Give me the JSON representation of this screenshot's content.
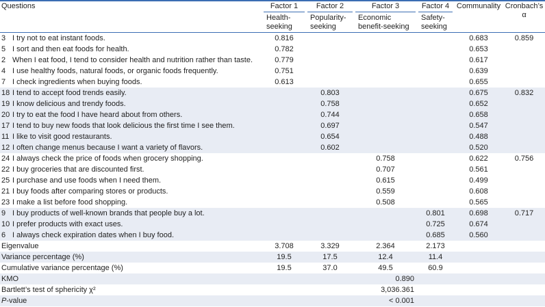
{
  "table": {
    "header": {
      "questions": "Questions",
      "factors": [
        {
          "name": "Factor 1",
          "sub": "Health-seeking"
        },
        {
          "name": "Factor 2",
          "sub": "Popularity-seeking"
        },
        {
          "name": "Factor 3",
          "sub": "Economic benefit-seeking"
        },
        {
          "name": "Factor 4",
          "sub": "Safety-seeking"
        }
      ],
      "communality": "Communality",
      "alpha": "Cronbach’s α"
    },
    "groups": [
      {
        "alpha": "0.859",
        "items": [
          {
            "num": "3",
            "text": "I try not to eat instant foods.",
            "loadings": [
              "0.816",
              null,
              null,
              null
            ],
            "communality": "0.683"
          },
          {
            "num": "5",
            "text": "I sort and then eat foods for health.",
            "loadings": [
              "0.782",
              null,
              null,
              null
            ],
            "communality": "0.653"
          },
          {
            "num": "2",
            "text": "When I eat food, I tend to consider health and nutrition rather than taste.",
            "loadings": [
              "0.779",
              null,
              null,
              null
            ],
            "communality": "0.617"
          },
          {
            "num": "4",
            "text": "I use healthy foods, natural foods, or organic foods frequently.",
            "loadings": [
              "0.751",
              null,
              null,
              null
            ],
            "communality": "0.639"
          },
          {
            "num": "7",
            "text": "I check ingredients when buying foods.",
            "loadings": [
              "0.613",
              null,
              null,
              null
            ],
            "communality": "0.655"
          }
        ]
      },
      {
        "alpha": "0.832",
        "items": [
          {
            "num": "18",
            "text": "I tend to accept food trends easily.",
            "loadings": [
              null,
              "0.803",
              null,
              null
            ],
            "communality": "0.675"
          },
          {
            "num": "19",
            "text": "I know delicious and trendy foods.",
            "loadings": [
              null,
              "0.758",
              null,
              null
            ],
            "communality": "0.652"
          },
          {
            "num": "20",
            "text": "I try to eat the food I have heard about from others.",
            "loadings": [
              null,
              "0.744",
              null,
              null
            ],
            "communality": "0.658"
          },
          {
            "num": "17",
            "text": "I tend to buy new foods that look delicious the first time I see them.",
            "loadings": [
              null,
              "0.697",
              null,
              null
            ],
            "communality": "0.547"
          },
          {
            "num": "11",
            "text": "I like to visit good restaurants.",
            "loadings": [
              null,
              "0.654",
              null,
              null
            ],
            "communality": "0.488"
          },
          {
            "num": "12",
            "text": "I often change menus because I want a variety of flavors.",
            "loadings": [
              null,
              "0.602",
              null,
              null
            ],
            "communality": "0.520"
          }
        ]
      },
      {
        "alpha": "0.756",
        "items": [
          {
            "num": "24",
            "text": "I always check the price of foods when grocery shopping.",
            "loadings": [
              null,
              null,
              "0.758",
              null
            ],
            "communality": "0.622"
          },
          {
            "num": "22",
            "text": "I buy groceries that are discounted first.",
            "loadings": [
              null,
              null,
              "0.707",
              null
            ],
            "communality": "0.561"
          },
          {
            "num": "25",
            "text": "I purchase and use foods when I need them.",
            "loadings": [
              null,
              null,
              "0.615",
              null
            ],
            "communality": "0.499"
          },
          {
            "num": "21",
            "text": "I buy foods after comparing stores or products.",
            "loadings": [
              null,
              null,
              "0.559",
              null
            ],
            "communality": "0.608"
          },
          {
            "num": "23",
            "text": "I make a list before food shopping.",
            "loadings": [
              null,
              null,
              "0.508",
              null
            ],
            "communality": "0.565"
          }
        ]
      },
      {
        "alpha": "0.717",
        "items": [
          {
            "num": "9",
            "text": "I buy products of well-known brands that people buy a lot.",
            "loadings": [
              null,
              null,
              null,
              "0.801"
            ],
            "communality": "0.698"
          },
          {
            "num": "10",
            "text": "I prefer products with exact uses.",
            "loadings": [
              null,
              null,
              null,
              "0.725"
            ],
            "communality": "0.674"
          },
          {
            "num": "6",
            "text": "I always check expiration dates when I buy food.",
            "loadings": [
              null,
              null,
              null,
              "0.685"
            ],
            "communality": "0.560"
          }
        ]
      }
    ],
    "summary": [
      {
        "label": "Eigenvalue",
        "values": [
          "3.708",
          "3.329",
          "2.364",
          "2.173"
        ]
      },
      {
        "label": "Variance percentage (%)",
        "values": [
          "19.5",
          "17.5",
          "12.4",
          "11.4"
        ]
      },
      {
        "label": "Cumulative variance percentage (%)",
        "values": [
          "19.5",
          "37.0",
          "49.5",
          "60.9"
        ]
      }
    ],
    "tests": [
      {
        "label": "KMO",
        "value": "0.890"
      },
      {
        "label": "Bartlett’s test of sphericity χ²",
        "value": "3,036.361"
      },
      {
        "label_italic": "P",
        "label_rest": "-value",
        "value": "< 0.001"
      }
    ]
  }
}
